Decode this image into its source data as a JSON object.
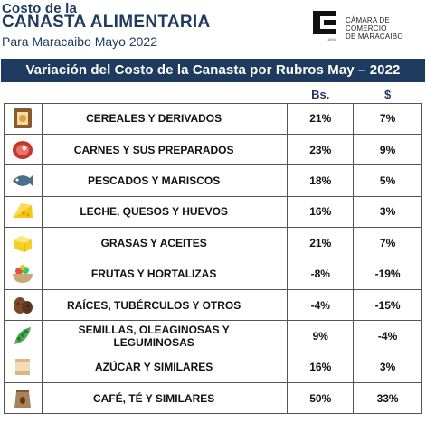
{
  "header": {
    "title_line1": "Costo de la",
    "title_line2": "CANASTA ALIMENTARIA",
    "subtitle": "Para Maracaibo Mayo 2022"
  },
  "logo": {
    "line1": "CÁMARA DE COMERCIO",
    "line2": "DE MARACAIBO",
    "year": "1894"
  },
  "banner": {
    "title": "Variación del Costo de la Canasta por Rubros May – 2022"
  },
  "table": {
    "col_bs": "Bs.",
    "col_usd": "$",
    "rows": [
      {
        "icon": "cereals-icon",
        "name": "CEREALES Y DERIVADOS",
        "bs": "21%",
        "usd": "7%"
      },
      {
        "icon": "meat-icon",
        "name": "CARNES Y SUS PREPARADOS",
        "bs": "23%",
        "usd": "9%"
      },
      {
        "icon": "fish-icon",
        "name": "PESCADOS Y MARISCOS",
        "bs": "18%",
        "usd": "5%"
      },
      {
        "icon": "cheese-icon",
        "name": "LECHE, QUESOS Y HUEVOS",
        "bs": "16%",
        "usd": "3%"
      },
      {
        "icon": "butter-icon",
        "name": "GRASAS Y ACEITES",
        "bs": "21%",
        "usd": "7%"
      },
      {
        "icon": "fruit-bowl-icon",
        "name": "FRUTAS Y HORTALIZAS",
        "bs": "-8%",
        "usd": "-19%"
      },
      {
        "icon": "roots-icon",
        "name": "RAÍCES, TUBÉRCULOS Y OTROS",
        "bs": "-4%",
        "usd": "-15%"
      },
      {
        "icon": "pea-pod-icon",
        "name": "SEMILLAS, OLEAGINOSAS Y LEGUMINOSAS",
        "bs": "9%",
        "usd": "-4%"
      },
      {
        "icon": "sugar-icon",
        "name": "AZÚCAR Y SIMILARES",
        "bs": "16%",
        "usd": "3%"
      },
      {
        "icon": "coffee-bag-icon",
        "name": "CAFÉ, TÉ Y SIMILARES",
        "bs": "50%",
        "usd": "33%"
      }
    ]
  },
  "colors": {
    "brand_navy": "#1e3a5f"
  }
}
